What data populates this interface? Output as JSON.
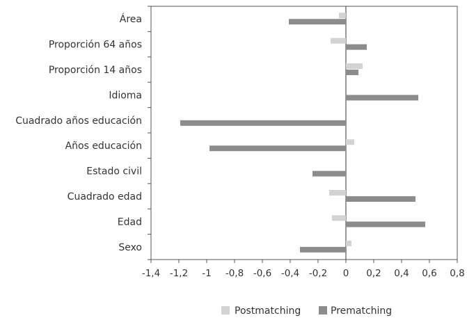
{
  "chart_data": {
    "type": "bar",
    "orientation": "horizontal",
    "categories": [
      "Área",
      "Proporción 64 años",
      "Proporción 14 años",
      "Idioma",
      "Cuadrado años educación",
      "Años educación",
      "Estado civil",
      "Cuadrado edad",
      "Edad",
      "Sexo"
    ],
    "series": [
      {
        "name": "Postmatching",
        "color": "#d3d3d3",
        "values": [
          -0.05,
          -0.11,
          0.12,
          0.0,
          0.0,
          0.06,
          0.0,
          -0.12,
          -0.1,
          0.04
        ]
      },
      {
        "name": "Prematching",
        "color": "#8c8c8c",
        "values": [
          -0.41,
          0.15,
          0.09,
          0.52,
          -1.19,
          -0.98,
          -0.24,
          0.5,
          0.57,
          -0.33
        ]
      }
    ],
    "xlim": [
      -1.4,
      0.8
    ],
    "xticks": [
      -1.4,
      -1.2,
      -1,
      -0.8,
      -0.6,
      -0.4,
      -0.2,
      0,
      0.2,
      0.4,
      0.6,
      0.8
    ],
    "xtick_labels": [
      "-1,4",
      "-1,2",
      "-1",
      "-0,8",
      "-0,6",
      "-0,4",
      "-0,2",
      "0",
      "0,2",
      "0,4",
      "0,6",
      "0,8"
    ],
    "legend_position": "bottom",
    "grid": false
  }
}
